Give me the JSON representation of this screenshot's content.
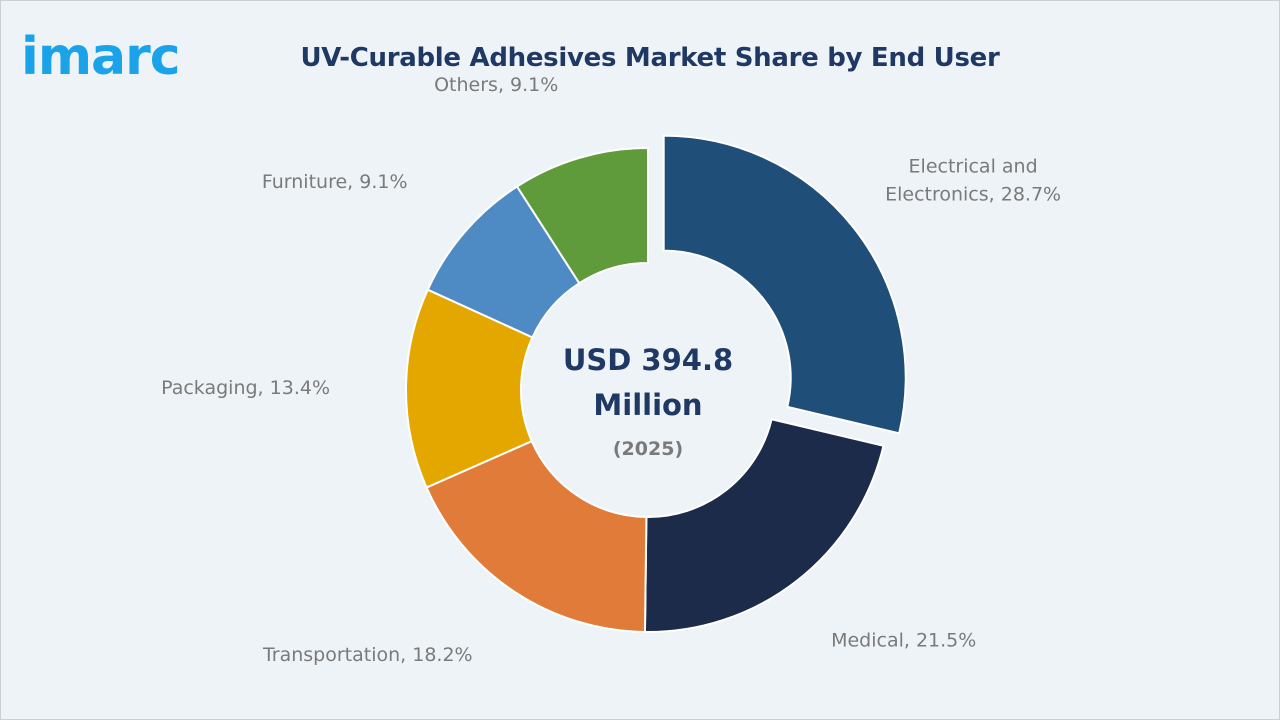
{
  "logo": {
    "text": "imarc"
  },
  "chart_data": {
    "type": "pie",
    "title": "UV-Curable Adhesives Market Share by End User",
    "center_value_line1": "USD 394.8",
    "center_value_line2": "Million",
    "center_year": "(2025)",
    "slices": [
      {
        "label_lines": [
          "Electrical and",
          "Electronics, 28.7%"
        ],
        "category": "Electrical and Electronics",
        "value": 28.7,
        "color": "#1f4e79",
        "exploded": true
      },
      {
        "label_lines": [
          "Medical, 21.5%"
        ],
        "category": "Medical",
        "value": 21.5,
        "color": "#1c2b4a",
        "exploded": false
      },
      {
        "label_lines": [
          "Transportation, 18.2%"
        ],
        "category": "Transportation",
        "value": 18.2,
        "color": "#e07b39",
        "exploded": false
      },
      {
        "label_lines": [
          "Packaging, 13.4%"
        ],
        "category": "Packaging",
        "value": 13.4,
        "color": "#e3a700",
        "exploded": false
      },
      {
        "label_lines": [
          "Furniture, 9.1%"
        ],
        "category": "Furniture",
        "value": 9.1,
        "color": "#4e8ac4",
        "exploded": false
      },
      {
        "label_lines": [
          "Others, 9.1%"
        ],
        "category": "Others",
        "value": 9.1,
        "color": "#5f9a3b",
        "exploded": false
      }
    ]
  }
}
